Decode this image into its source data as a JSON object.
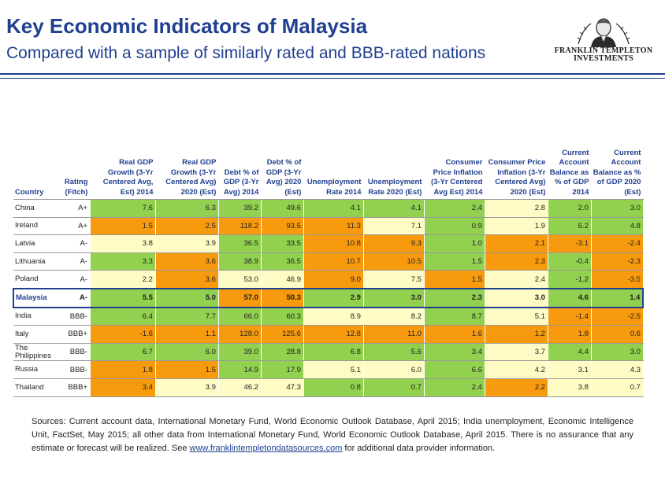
{
  "header": {
    "title": "Key Economic Indicators of Malaysia",
    "subtitle": "Compared with a sample of similarly rated and BBB-rated nations",
    "logo_line1": "FRANKLIN TEMPLETON",
    "logo_line2": "INVESTMENTS"
  },
  "colors": {
    "green": "#92d050",
    "orange": "#f79a0e",
    "yellow": "#fefcc4",
    "title_blue": "#1f3f8f"
  },
  "chart_data": {
    "type": "table",
    "columns": [
      "Country",
      "Rating (Fitch)",
      "Real GDP Growth (3-Yr Centered Avg, Est) 2014",
      "Real GDP Growth (3-Yr Centered Avg) 2020 (Est)",
      "Debt % of GDP (3-Yr Avg) 2014",
      "Debt % of GDP (3-Yr Avg) 2020 (Est)",
      "Unemployment Rate 2014",
      "Unemployment Rate 2020 (Est)",
      "Consumer Price Inflation (3-Yr Centered Avg Est) 2014",
      "Consumer Price Inflation (3-Yr Centered Avg) 2020 (Est)",
      "Current Account Balance as % of GDP 2014",
      "Current Account Balance as % of GDP 2020 (Est)"
    ],
    "rows": [
      {
        "country": "China",
        "rating": "A+",
        "values": [
          "7.6",
          "6.3",
          "39.2",
          "49.6",
          "4.1",
          "4.1",
          "2.4",
          "2.8",
          "2.0",
          "3.0"
        ],
        "colors": [
          "g",
          "g",
          "g",
          "g",
          "g",
          "g",
          "g",
          "y",
          "g",
          "g"
        ]
      },
      {
        "country": "Ireland",
        "rating": "A+",
        "values": [
          "1.5",
          "2.5",
          "118.2",
          "93.5",
          "11.3",
          "7.1",
          "0.9",
          "1.9",
          "6.2",
          "4.8"
        ],
        "colors": [
          "o",
          "o",
          "o",
          "o",
          "o",
          "y",
          "g",
          "y",
          "g",
          "g"
        ]
      },
      {
        "country": "Latvia",
        "rating": "A-",
        "values": [
          "3.8",
          "3.9",
          "36.5",
          "33.5",
          "10.8",
          "9.3",
          "1.0",
          "2.1",
          "-3.1",
          "-2.4"
        ],
        "colors": [
          "y",
          "y",
          "g",
          "g",
          "o",
          "o",
          "g",
          "o",
          "o",
          "o"
        ]
      },
      {
        "country": "Lithuania",
        "rating": "A-",
        "values": [
          "3.3",
          "3.6",
          "38.9",
          "36.5",
          "10.7",
          "10.5",
          "1.5",
          "2.3",
          "-0.4",
          "-2.3"
        ],
        "colors": [
          "g",
          "o",
          "g",
          "g",
          "o",
          "o",
          "g",
          "o",
          "g",
          "o"
        ]
      },
      {
        "country": "Poland",
        "rating": "A-",
        "values": [
          "2.2",
          "3.6",
          "53.0",
          "46.9",
          "9.0",
          "7.5",
          "1.5",
          "2.4",
          "-1.2",
          "-3.5"
        ],
        "colors": [
          "y",
          "o",
          "y",
          "y",
          "o",
          "y",
          "o",
          "y",
          "g",
          "o"
        ]
      },
      {
        "country": "Malaysia",
        "rating": "A-",
        "values": [
          "5.5",
          "5.0",
          "57.0",
          "50.3",
          "2.9",
          "3.0",
          "2.3",
          "3.0",
          "4.6",
          "1.4"
        ],
        "colors": [
          "g",
          "g",
          "o",
          "o",
          "g",
          "g",
          "g",
          "y",
          "g",
          "g"
        ]
      },
      {
        "country": "India",
        "rating": "BBB-",
        "values": [
          "6.4",
          "7.7",
          "66.0",
          "60.3",
          "8.9",
          "8.2",
          "8.7",
          "5.1",
          "-1.4",
          "-2.5"
        ],
        "colors": [
          "g",
          "g",
          "g",
          "g",
          "y",
          "y",
          "g",
          "y",
          "o",
          "o"
        ]
      },
      {
        "country": "Italy",
        "rating": "BBB+",
        "values": [
          "-1.6",
          "1.1",
          "128.0",
          "125.6",
          "12.8",
          "11.0",
          "1.6",
          "1.2",
          "1.8",
          "0.6"
        ],
        "colors": [
          "o",
          "o",
          "o",
          "o",
          "o",
          "o",
          "o",
          "o",
          "o",
          "o"
        ]
      },
      {
        "country": "The Philippines",
        "rating": "BBB-",
        "values": [
          "6.7",
          "6.0",
          "39.0",
          "28.8",
          "6.8",
          "5.6",
          "3.4",
          "3.7",
          "4.4",
          "3.0"
        ],
        "colors": [
          "g",
          "g",
          "g",
          "g",
          "g",
          "g",
          "g",
          "y",
          "g",
          "g"
        ]
      },
      {
        "country": "Russia",
        "rating": "BBB-",
        "values": [
          "1.8",
          "1.5",
          "14.9",
          "17.9",
          "5.1",
          "6.0",
          "6.6",
          "4.2",
          "3.1",
          "4.3"
        ],
        "colors": [
          "o",
          "o",
          "g",
          "g",
          "y",
          "y",
          "g",
          "y",
          "y",
          "y"
        ]
      },
      {
        "country": "Thailand",
        "rating": "BBB+",
        "values": [
          "3.4",
          "3.9",
          "46.2",
          "47.3",
          "0.8",
          "0.7",
          "2.4",
          "2.2",
          "3.8",
          "0.7"
        ],
        "colors": [
          "o",
          "y",
          "y",
          "y",
          "g",
          "g",
          "g",
          "o",
          "y",
          "y"
        ]
      }
    ]
  },
  "footer": {
    "sources_text": "Sources: Current account data, International Monetary Fund, World Economic Outlook Database, April 2015; India unemployment, Economic Intelligence Unit, FactSet, May 2015; all other data from International Monetary Fund, World Economic Outlook Database, April 2015. There is no assurance that any estimate or forecast will be realized. See ",
    "link_text": "www.franklintempletondatasources.com",
    "sources_tail": " for additional data provider information."
  }
}
